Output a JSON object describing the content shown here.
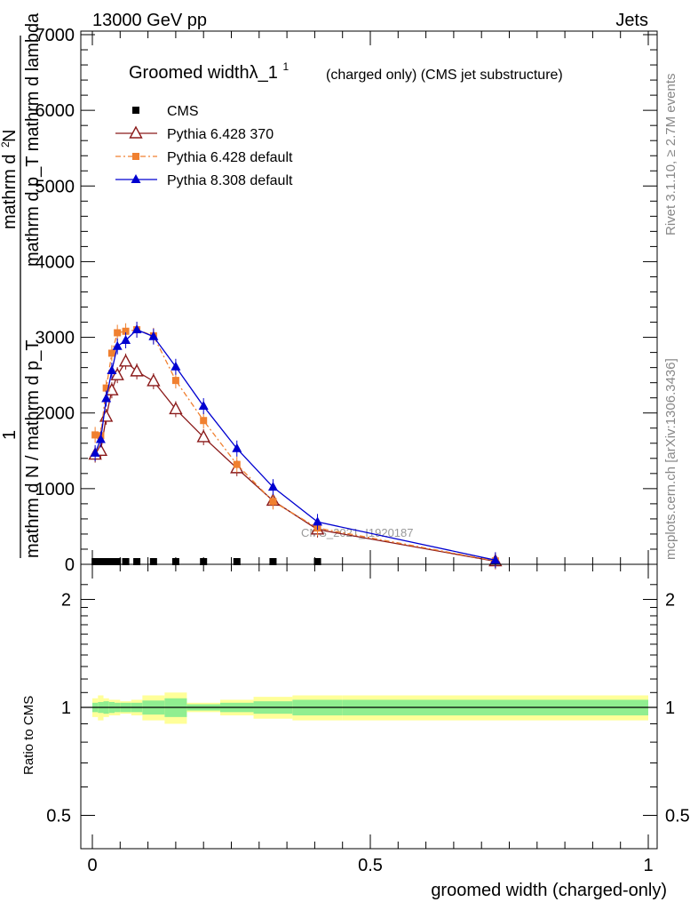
{
  "header": {
    "left": "13000 GeV pp",
    "right": "Jets"
  },
  "side_labels": {
    "rivet": "Rivet 3.1.10, ≥ 2.7M events",
    "mcplots": "mcplots.cern.ch [arXiv:1306.3436]"
  },
  "chart_data": [
    {
      "type": "line",
      "title": "Groomed widthλ_1",
      "title_sup": "1",
      "subtitle": "(charged only) (CMS jet substructure)",
      "ylabel_numer": "1",
      "ylabel_denom": "mathrm d N / mathrm d p_T",
      "ylabel_top": "mathrm d",
      "ylabel_top_sup": "2",
      "ylabel_N": "N",
      "ylabel_bottom": "mathrm d p_T mathrm d lambda",
      "watermark": "CMS_2021_I1920187",
      "xlim": [
        0,
        1
      ],
      "ylim": [
        0,
        7000
      ],
      "yticks": [
        {
          "value": 0,
          "label": "0"
        },
        {
          "value": 1000,
          "label": "1000"
        },
        {
          "value": 2000,
          "label": "2000"
        },
        {
          "value": 3000,
          "label": "3000"
        },
        {
          "value": 4000,
          "label": "4000"
        },
        {
          "value": 5000,
          "label": "5000"
        },
        {
          "value": 6000,
          "label": "6000"
        },
        {
          "value": 7000,
          "label": "7000"
        }
      ],
      "legend_position": "top-left",
      "series": [
        {
          "name": "CMS",
          "color": "#000000",
          "marker": "square",
          "x": [
            0.005,
            0.015,
            0.025,
            0.035,
            0.045,
            0.06,
            0.08,
            0.11,
            0.15,
            0.2,
            0.26,
            0.325,
            0.405
          ],
          "y": [
            5,
            5,
            5,
            5,
            5,
            5,
            5,
            5,
            5,
            5,
            5,
            5,
            5
          ]
        },
        {
          "name": "Pythia 6.428 370",
          "color": "#8b1a1a",
          "marker": "open-triangle",
          "x": [
            0.005,
            0.015,
            0.025,
            0.035,
            0.045,
            0.06,
            0.08,
            0.11,
            0.15,
            0.2,
            0.26,
            0.325,
            0.405,
            0.725
          ],
          "y": [
            1450,
            1500,
            1950,
            2300,
            2500,
            2680,
            2550,
            2420,
            2050,
            1680,
            1270,
            840,
            460,
            40
          ]
        },
        {
          "name": "Pythia 6.428 default",
          "color": "#f08030",
          "marker": "square",
          "x": [
            0.005,
            0.015,
            0.025,
            0.035,
            0.045,
            0.06,
            0.08,
            0.11,
            0.15,
            0.2,
            0.26,
            0.325,
            0.405,
            0.725
          ],
          "y": [
            1710,
            1700,
            2330,
            2790,
            3060,
            3080,
            3100,
            3020,
            2430,
            1900,
            1320,
            830,
            480,
            45
          ]
        },
        {
          "name": "Pythia 8.308 default",
          "color": "#0000d0",
          "marker": "triangle",
          "x": [
            0.005,
            0.015,
            0.025,
            0.035,
            0.045,
            0.06,
            0.08,
            0.11,
            0.15,
            0.2,
            0.26,
            0.325,
            0.405,
            0.725
          ],
          "y": [
            1470,
            1650,
            2190,
            2560,
            2880,
            2960,
            3100,
            3010,
            2610,
            2090,
            1530,
            1020,
            560,
            55
          ]
        }
      ]
    },
    {
      "type": "line",
      "ylabel": "Ratio to CMS",
      "xlabel": "groomed width (charged-only)",
      "xlim": [
        0,
        1
      ],
      "ylim": [
        0.4,
        2.4
      ],
      "log_y": true,
      "yticks": [
        {
          "value": 0.5,
          "label": "0.5"
        },
        {
          "value": 1,
          "label": "1"
        },
        {
          "value": 2,
          "label": "2"
        }
      ],
      "xticks": [
        {
          "value": 0,
          "label": "0"
        },
        {
          "value": 0.5,
          "label": "0.5"
        },
        {
          "value": 1,
          "label": "1"
        }
      ],
      "reference_line": 1,
      "bands": {
        "inner_color": "#90ee90",
        "outer_color": "#ffff99",
        "edges": [
          0,
          0.01,
          0.02,
          0.03,
          0.04,
          0.05,
          0.07,
          0.09,
          0.13,
          0.17,
          0.23,
          0.29,
          0.36,
          0.45,
          1.0
        ],
        "inner_half_width": [
          0.03,
          0.035,
          0.04,
          0.035,
          0.03,
          0.03,
          0.03,
          0.045,
          0.06,
          0.02,
          0.03,
          0.04,
          0.05,
          0.05
        ],
        "outer_half_width": [
          0.06,
          0.08,
          0.06,
          0.05,
          0.05,
          0.04,
          0.05,
          0.08,
          0.1,
          0.03,
          0.05,
          0.07,
          0.08,
          0.08
        ]
      }
    }
  ]
}
